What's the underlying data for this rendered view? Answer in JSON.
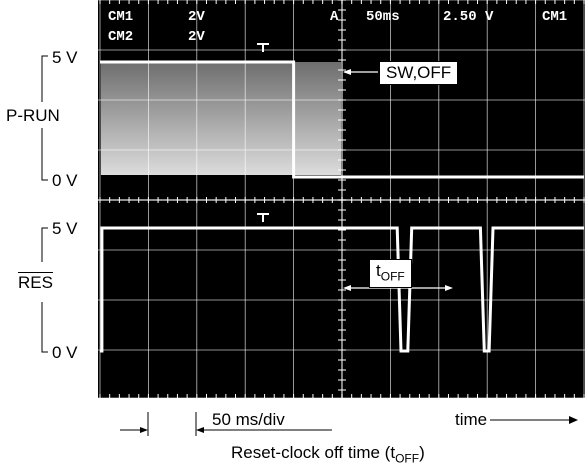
{
  "header": {
    "ch1_name": "CM1",
    "ch1_scale": "2V",
    "ch2_name": "CM2",
    "ch2_scale": "2V",
    "trigger_mode": "A",
    "timebase": "50ms",
    "trigger_level": "2.50 V",
    "trigger_source": "CM1"
  },
  "labels": {
    "top_5v": "5 V",
    "top_0v": "0 V",
    "bot_5v": "5 V",
    "bot_0v": "0 V",
    "prun": "P-RUN",
    "res": "RES",
    "sw_off": "SW,OFF",
    "toff_t": "t",
    "toff_sub": "OFF",
    "scale": "50 ms/div",
    "time": "time",
    "caption_main": "Reset-clock off time (t",
    "caption_sub": "OFF",
    "caption_end": ")"
  },
  "chart_data": {
    "type": "line",
    "x_unit": "ms",
    "x_divisions": 10,
    "time_per_div_ms": 50,
    "series": [
      {
        "name": "P-RUN",
        "y_unit": "V",
        "ylim": [
          0,
          5
        ],
        "points": [
          [
            0,
            5
          ],
          [
            200,
            5
          ],
          [
            200,
            0
          ],
          [
            500,
            0
          ]
        ]
      },
      {
        "name": "RES",
        "y_unit": "V",
        "ylim": [
          0,
          5
        ],
        "points": [
          [
            0,
            0
          ],
          [
            2,
            0
          ],
          [
            2,
            5
          ],
          [
            307,
            5
          ],
          [
            311,
            0
          ],
          [
            318,
            0
          ],
          [
            322,
            5
          ],
          [
            393,
            5
          ],
          [
            397,
            0
          ],
          [
            402,
            0
          ],
          [
            406,
            5
          ],
          [
            500,
            5
          ]
        ]
      }
    ],
    "annotations": [
      "SW,OFF",
      "tOFF",
      "50 ms/div",
      "time",
      "Reset-clock off time (tOFF)"
    ],
    "colors": {
      "screen": "#000000",
      "trace": "#ffffff",
      "grid": "#ffffff"
    }
  }
}
